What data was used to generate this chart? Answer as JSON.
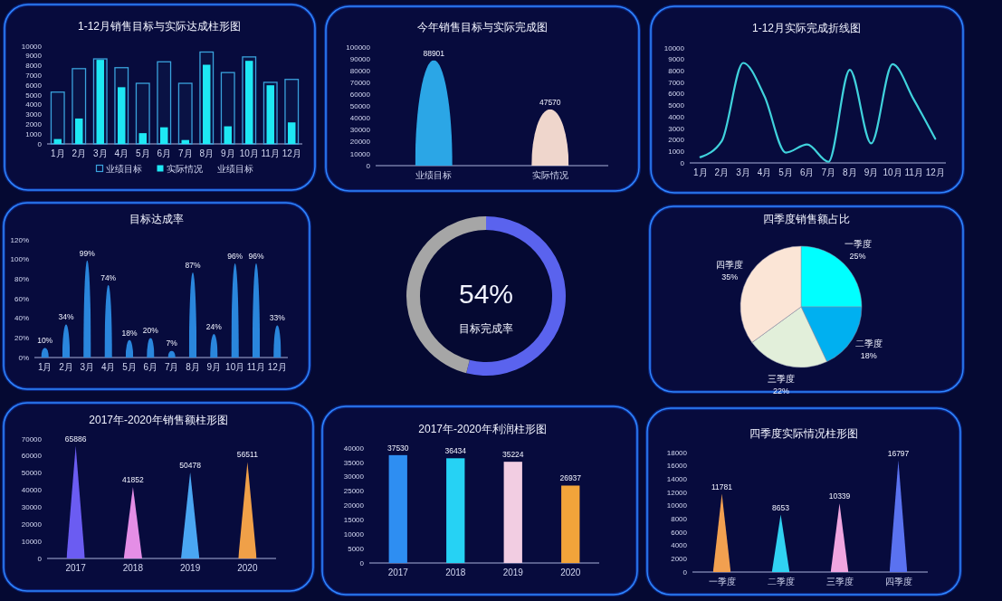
{
  "chart_data": [
    {
      "type": "bar",
      "title": "1-12月销售目标与实际达成柱形图",
      "categories": [
        "1月",
        "2月",
        "3月",
        "4月",
        "5月",
        "6月",
        "7月",
        "8月",
        "9月",
        "10月",
        "11月",
        "12月"
      ],
      "series": [
        {
          "name": "业绩目标",
          "color": "#3aa2dc",
          "values": [
            5300,
            7700,
            8700,
            7800,
            6200,
            8400,
            6200,
            9400,
            7300,
            8900,
            6300,
            6600
          ]
        },
        {
          "name": "实际情况",
          "color": "#1ee8f4",
          "values": [
            500,
            2600,
            8600,
            5800,
            1100,
            1700,
            400,
            8100,
            1800,
            8500,
            6000,
            2200
          ]
        }
      ],
      "ylim": [
        0,
        10000
      ],
      "yticks": [
        0,
        1000,
        2000,
        3000,
        4000,
        5000,
        6000,
        7000,
        8000,
        9000,
        10000
      ],
      "legend": "bottom",
      "annotations": [
        "业绩目标"
      ]
    },
    {
      "type": "bar",
      "title": "今年销售目标与实际完成图",
      "categories": [
        "业绩目标",
        "实际情况"
      ],
      "values": [
        88901,
        47570
      ],
      "colors": [
        "#2ba6e6",
        "#efd6cc"
      ],
      "ylim": [
        0,
        100000
      ],
      "yticks": [
        0,
        10000,
        20000,
        30000,
        40000,
        50000,
        60000,
        70000,
        80000,
        90000,
        100000
      ],
      "data_labels": true
    },
    {
      "type": "line",
      "title": "1-12月实际完成折线图",
      "categories": [
        "1月",
        "2月",
        "3月",
        "4月",
        "5月",
        "6月",
        "7月",
        "8月",
        "9月",
        "10月",
        "11月",
        "12月"
      ],
      "values": [
        500,
        1900,
        8700,
        5800,
        900,
        1600,
        100,
        8100,
        1700,
        8600,
        5500,
        2100
      ],
      "color": "#40d2dc",
      "ylim": [
        0,
        10000
      ],
      "yticks": [
        0,
        1000,
        2000,
        3000,
        4000,
        5000,
        6000,
        7000,
        8000,
        9000,
        10000
      ]
    },
    {
      "type": "bar",
      "title": "目标达成率",
      "categories": [
        "1月",
        "2月",
        "3月",
        "4月",
        "5月",
        "6月",
        "7月",
        "8月",
        "9月",
        "10月",
        "11月",
        "12月"
      ],
      "values": [
        10,
        34,
        99,
        74,
        18,
        20,
        7,
        87,
        24,
        96,
        96,
        33
      ],
      "value_labels": [
        "10%",
        "34%",
        "99%",
        "74%",
        "18%",
        "20%",
        "7%",
        "87%",
        "24%",
        "96%",
        "96%",
        "33%"
      ],
      "color": "#2a86dc",
      "ylim": [
        0,
        120
      ],
      "yticks": [
        {
          "value": 0,
          "label": "0%"
        },
        {
          "value": 20,
          "label": "20%"
        },
        {
          "value": 40,
          "label": "40%"
        },
        {
          "value": 60,
          "label": "60%"
        },
        {
          "value": 80,
          "label": "80%"
        },
        {
          "value": 100,
          "label": "100%"
        },
        {
          "value": 120,
          "label": "120%"
        }
      ]
    },
    {
      "type": "donut",
      "categories": [
        null,
        null
      ],
      "values": [
        54,
        46
      ],
      "colors": [
        "#5a63ee",
        "#a6a6a6"
      ],
      "value_labels": [
        "54%",
        null
      ],
      "annotations": [
        "目标完成率"
      ]
    },
    {
      "type": "pie",
      "title": "四季度销售额占比",
      "categories": [
        "一季度",
        "二季度",
        "三季度",
        "四季度"
      ],
      "values": [
        25,
        18,
        22,
        35
      ],
      "colors": [
        "#00ffff",
        "#00b0f0",
        "#e2efda",
        "#fbe5d6"
      ],
      "value_labels": [
        "25%",
        "18%",
        "22%",
        "35%"
      ]
    },
    {
      "type": "bar",
      "title": "2017年-2020年销售额柱形图",
      "categories": [
        "2017",
        "2018",
        "2019",
        "2020"
      ],
      "values": [
        65886,
        41852,
        50478,
        56511
      ],
      "colors": [
        "#6b5cf2",
        "#e48ee6",
        "#4aa6f2",
        "#f0a048"
      ],
      "ylim": [
        0,
        70000
      ],
      "yticks": [
        0,
        10000,
        20000,
        30000,
        40000,
        50000,
        60000,
        70000
      ],
      "data_labels": true
    },
    {
      "type": "bar",
      "title": "2017年-2020年利润柱形图",
      "categories": [
        "2017",
        "2018",
        "2019",
        "2020"
      ],
      "values": [
        37530,
        36434,
        35224,
        26937
      ],
      "colors": [
        "#2e8ef2",
        "#26d2f4",
        "#f2cde2",
        "#f2a43a"
      ],
      "ylim": [
        0,
        40000
      ],
      "yticks": [
        0,
        5000,
        10000,
        15000,
        20000,
        25000,
        30000,
        35000,
        40000
      ],
      "data_labels": true
    },
    {
      "type": "bar",
      "title": "四季度实际情况柱形图",
      "categories": [
        "一季度",
        "二季度",
        "三季度",
        "四季度"
      ],
      "values": [
        11781,
        8653,
        10339,
        16797
      ],
      "colors": [
        "#f2a050",
        "#30d2f2",
        "#f0a6e0",
        "#5a72f0"
      ],
      "ylim": [
        0,
        18000
      ],
      "yticks": [
        0,
        2000,
        4000,
        6000,
        8000,
        10000,
        12000,
        14000,
        16000,
        18000
      ],
      "data_labels": true
    }
  ]
}
